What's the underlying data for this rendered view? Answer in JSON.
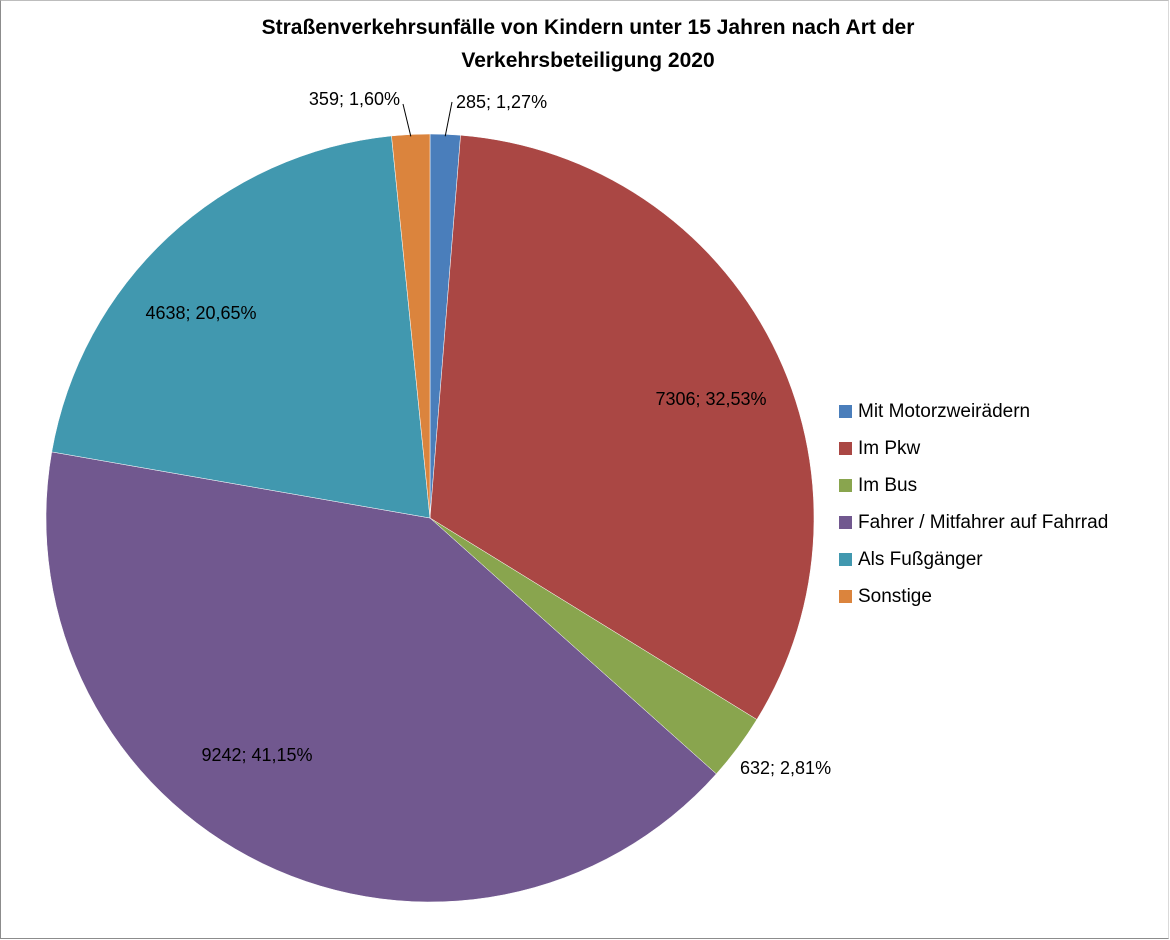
{
  "chart_data": {
    "type": "pie",
    "title_lines": [
      "Straßenverkehrsunfälle von Kindern unter 15 Jahren nach Art der",
      "Verkehrsbeteiligung  2020"
    ],
    "legend_position": "right",
    "start_angle_deg": 0,
    "direction": "clockwise",
    "slices": [
      {
        "name": "Mit Motorzweirädern",
        "value": 285,
        "percent": 1.27,
        "label": "285; 1,27%",
        "color": "#4A7EBB"
      },
      {
        "name": "Im Pkw",
        "value": 7306,
        "percent": 32.53,
        "label": "7306; 32,53%",
        "color": "#AA4744"
      },
      {
        "name": "Im Bus",
        "value": 632,
        "percent": 2.81,
        "label": "632; 2,81%",
        "color": "#89A54E"
      },
      {
        "name": " Fahrer / Mitfahrer auf Fahrrad",
        "value": 9242,
        "percent": 41.15,
        "label": "9242; 41,15%",
        "color": "#71588F"
      },
      {
        "name": "Als Fußgänger",
        "value": 4638,
        "percent": 20.65,
        "label": "4638; 20,65%",
        "color": "#4198AF"
      },
      {
        "name": "Sonstige",
        "value": 359,
        "percent": 1.6,
        "label": "359; 1,60%",
        "color": "#DB843D"
      }
    ]
  }
}
